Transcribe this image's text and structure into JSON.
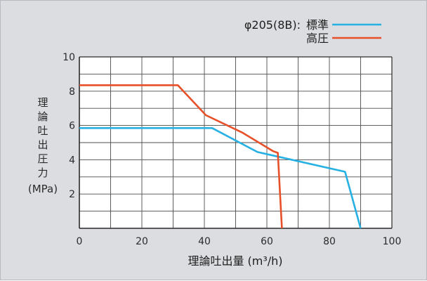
{
  "chart_data": {
    "type": "line",
    "legend_title": "φ205(8B):",
    "xlabel": "理論吐出量 (m³/h)",
    "ylabel": "理論吐出圧力",
    "ylabel_unit": "(MPa)",
    "xlim": [
      0,
      100
    ],
    "ylim": [
      0,
      10
    ],
    "xticks": [
      0,
      20,
      40,
      60,
      80,
      100
    ],
    "yticks": [
      2,
      4,
      6,
      8,
      10
    ],
    "grid": true,
    "legend_placement": "top-right",
    "series": [
      {
        "name": "標準",
        "color": "#27b1e3",
        "points": [
          [
            0,
            5.85
          ],
          [
            42.5,
            5.85
          ],
          [
            57,
            4.45
          ],
          [
            85,
            3.3
          ],
          [
            90,
            0
          ]
        ]
      },
      {
        "name": "高圧",
        "color": "#e8502a",
        "points": [
          [
            0,
            8.35
          ],
          [
            31.5,
            8.35
          ],
          [
            40.5,
            6.6
          ],
          [
            52,
            5.6
          ],
          [
            62,
            4.5
          ],
          [
            63.5,
            4.4
          ],
          [
            64.8,
            0
          ]
        ]
      }
    ]
  }
}
